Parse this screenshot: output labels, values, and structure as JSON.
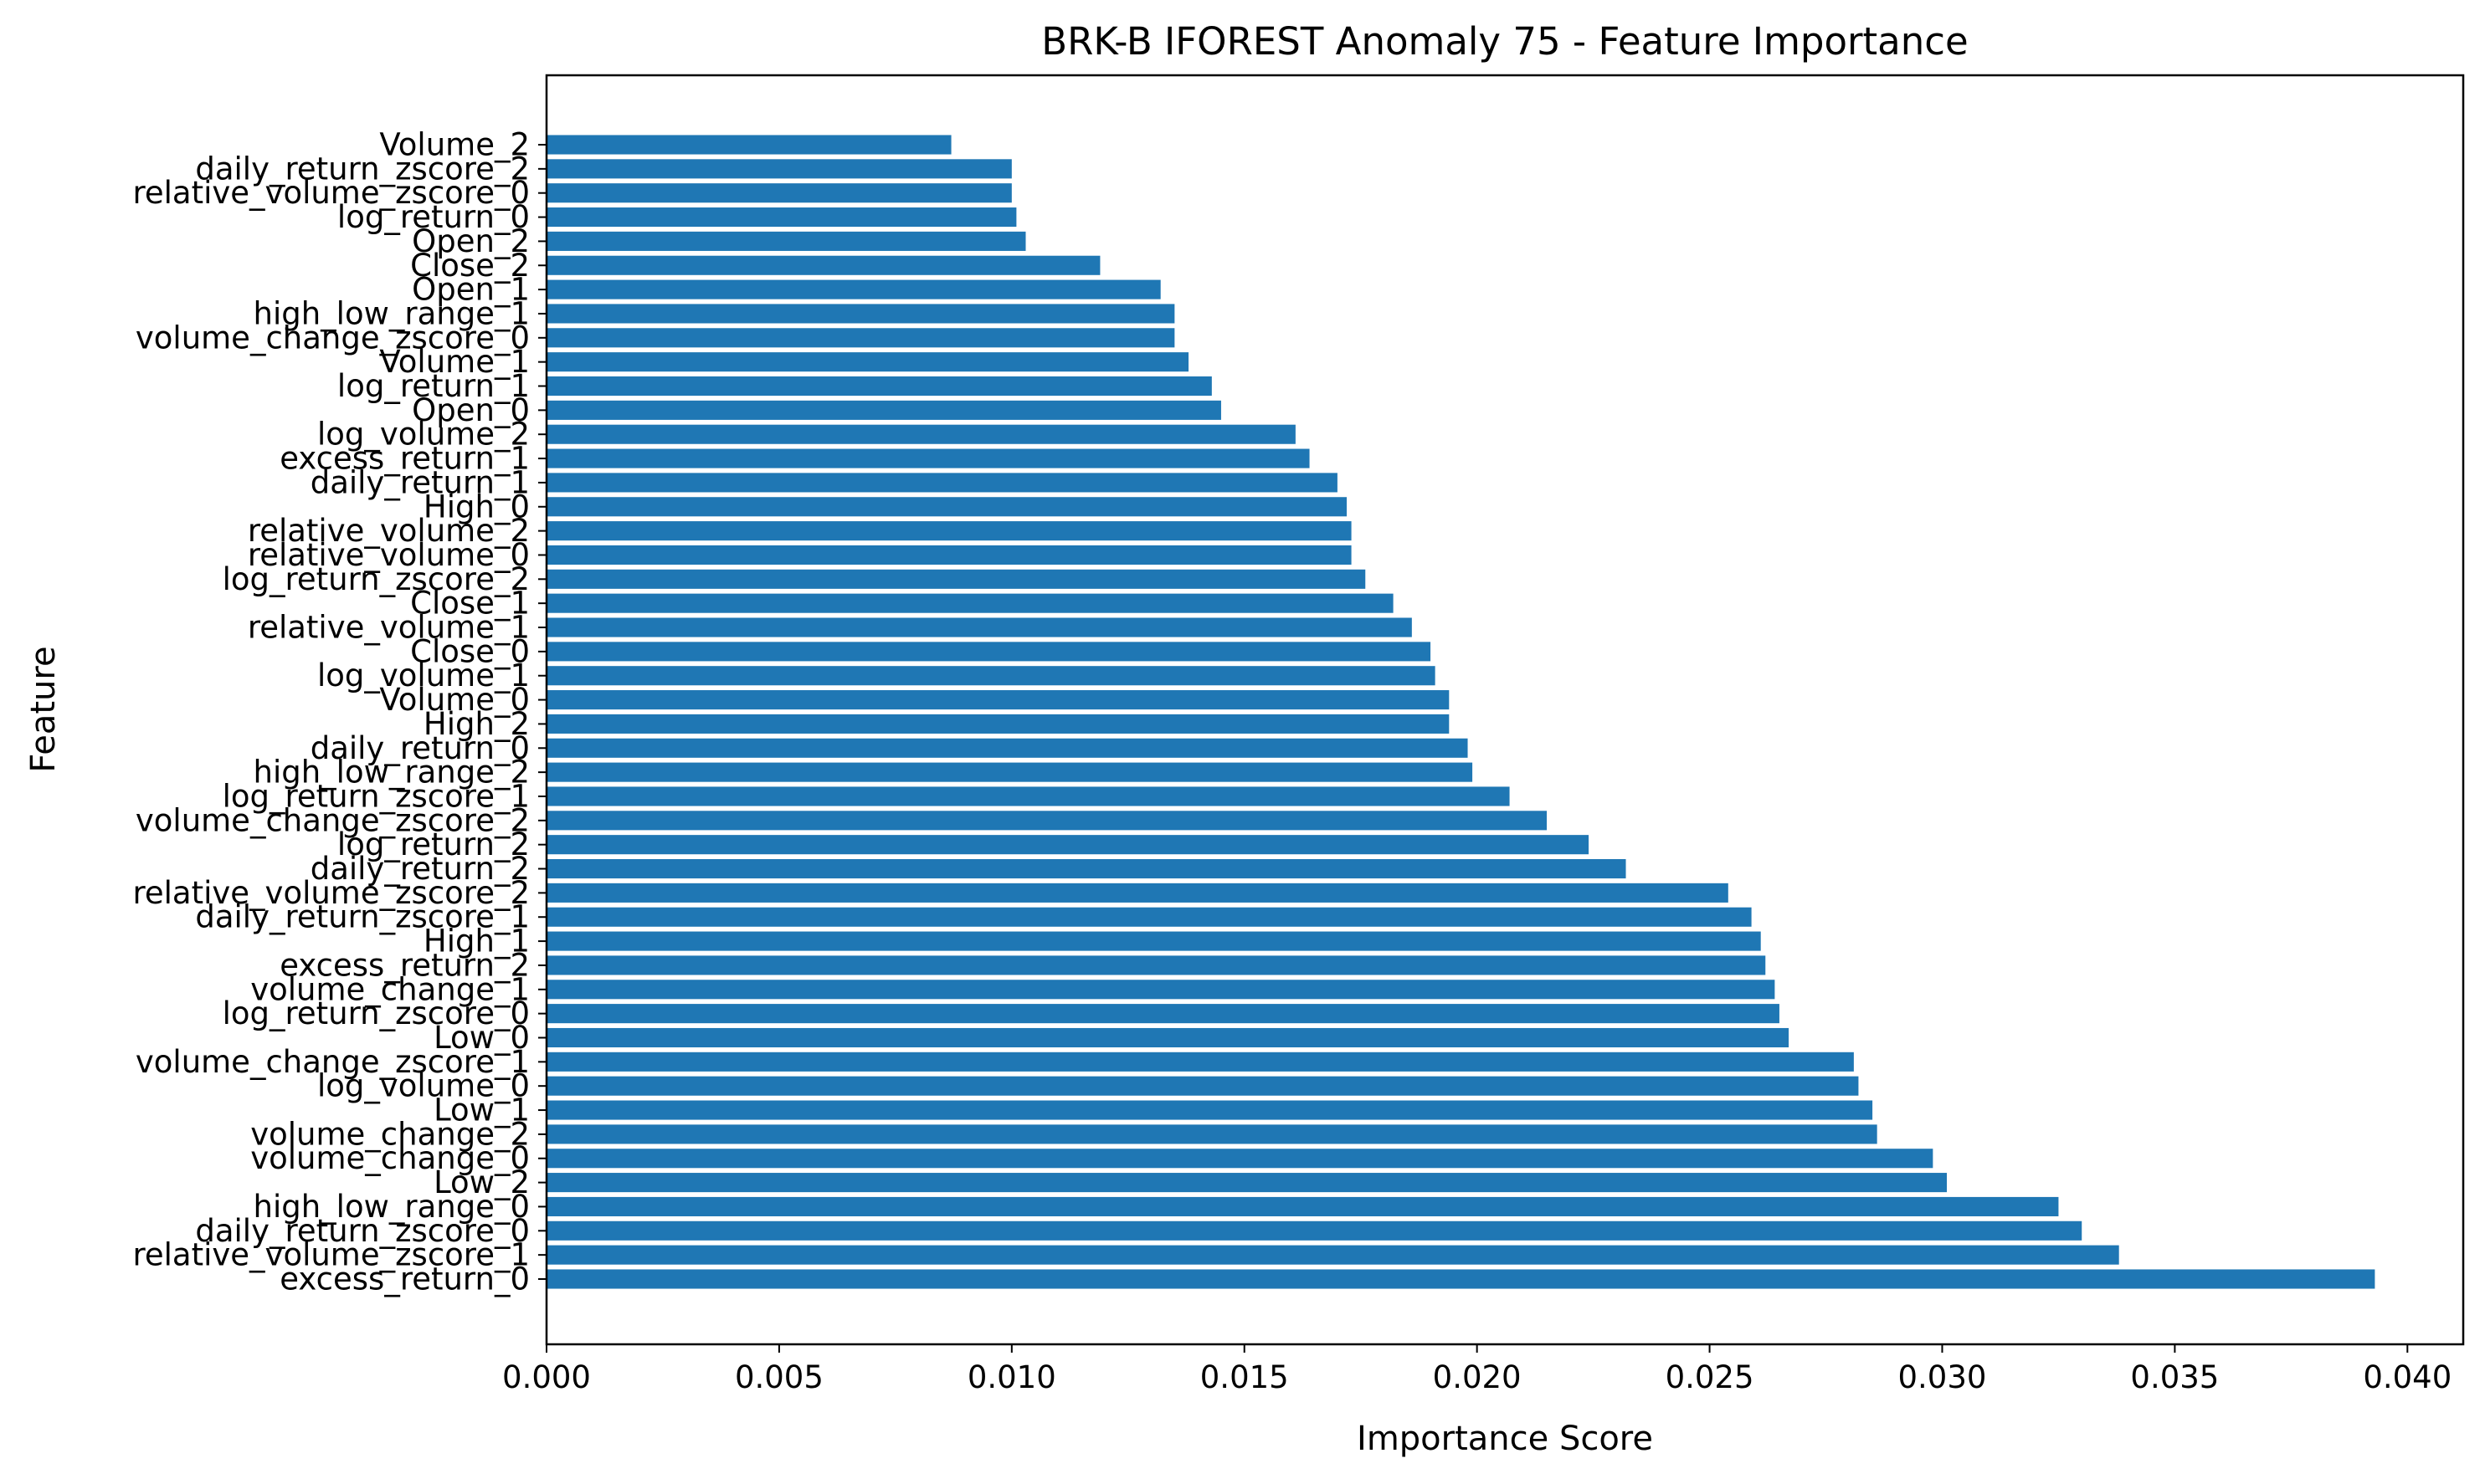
{
  "chart_data": {
    "type": "bar",
    "orientation": "horizontal",
    "title": "BRK-B IFOREST Anomaly 75 - Feature Importance",
    "xlabel": "Importance Score",
    "ylabel": "Feature",
    "xlim": [
      0.0,
      0.0412
    ],
    "xticks": [
      "0.000",
      "0.005",
      "0.010",
      "0.015",
      "0.020",
      "0.025",
      "0.030",
      "0.035",
      "0.040"
    ],
    "grid": false,
    "bar_color": "#1f77b4",
    "categories": [
      "excess_return_0",
      "relative_volume_zscore_1",
      "daily_return_zscore_0",
      "high_low_range_0",
      "Low_2",
      "volume_change_0",
      "volume_change_2",
      "Low_1",
      "log_volume_0",
      "volume_change_zscore_1",
      "Low_0",
      "log_return_zscore_0",
      "volume_change_1",
      "excess_return_2",
      "High_1",
      "daily_return_zscore_1",
      "relative_volume_zscore_2",
      "daily_return_2",
      "log_return_2",
      "volume_change_zscore_2",
      "log_return_zscore_1",
      "high_low_range_2",
      "daily_return_0",
      "High_2",
      "Volume_0",
      "log_volume_1",
      "Close_0",
      "relative_volume_1",
      "Close_1",
      "log_return_zscore_2",
      "relative_volume_0",
      "relative_volume_2",
      "High_0",
      "daily_return_1",
      "excess_return_1",
      "log_volume_2",
      "Open_0",
      "log_return_1",
      "Volume_1",
      "volume_change_zscore_0",
      "high_low_range_1",
      "Open_1",
      "Close_2",
      "Open_2",
      "log_return_0",
      "relative_volume_zscore_0",
      "daily_return_zscore_2",
      "Volume_2"
    ],
    "values": [
      0.0393,
      0.0338,
      0.033,
      0.0325,
      0.0301,
      0.0298,
      0.0286,
      0.0285,
      0.0282,
      0.0281,
      0.0267,
      0.0265,
      0.0264,
      0.0262,
      0.0261,
      0.0259,
      0.0254,
      0.0232,
      0.0224,
      0.0215,
      0.0207,
      0.0199,
      0.0198,
      0.0194,
      0.0194,
      0.0191,
      0.019,
      0.0186,
      0.0182,
      0.0176,
      0.0173,
      0.0173,
      0.0172,
      0.017,
      0.0164,
      0.0161,
      0.0145,
      0.0143,
      0.0138,
      0.0135,
      0.0135,
      0.0132,
      0.0119,
      0.0103,
      0.0101,
      0.01,
      0.01,
      0.0087
    ]
  }
}
